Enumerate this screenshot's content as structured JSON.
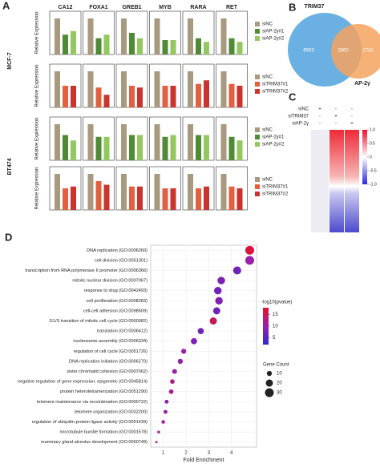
{
  "chart_data": [
    {
      "type": "bar",
      "panel": "A",
      "group_label": "MCF-7",
      "y_label": "Relative Expression",
      "categories": [
        "CA12",
        "FOXA1",
        "GREB1",
        "MYB",
        "RARA",
        "RET"
      ],
      "ylim": [
        0,
        1.2
      ],
      "series": [
        {
          "name": "siNC",
          "color": "#a89a7e",
          "values": [
            1,
            1,
            1,
            1,
            1,
            1
          ]
        },
        {
          "name": "siAP-2γ#1",
          "color": "#4f8a34",
          "values": [
            0.55,
            0.45,
            0.6,
            0.4,
            0.45,
            0.45
          ]
        },
        {
          "name": "siAP-2γ#2",
          "color": "#93c75f",
          "values": [
            0.65,
            0.55,
            0.45,
            0.4,
            0.35,
            0.35
          ]
        }
      ]
    },
    {
      "type": "bar",
      "y_label": "Relative Expression",
      "categories": [
        null,
        null,
        null,
        null,
        null,
        null
      ],
      "ylim": [
        0,
        1.2
      ],
      "series": [
        {
          "name": "siNC",
          "color": "#a89a7e",
          "values": [
            1,
            1,
            1,
            1,
            1,
            1
          ]
        },
        {
          "name": "siTRIM37#1",
          "color": "#e2603f",
          "values": [
            0.6,
            0.55,
            0.6,
            0.6,
            0.65,
            0.65
          ]
        },
        {
          "name": "siTRIM37#2",
          "color": "#c8352e",
          "values": [
            0.6,
            0.35,
            0.55,
            0.6,
            0.75,
            0.6
          ]
        }
      ]
    },
    {
      "type": "bar",
      "group_label": "BT474",
      "y_label": "Relative Expression",
      "categories": [
        null,
        null,
        null,
        null,
        null,
        null
      ],
      "ylim": [
        0,
        1.2
      ],
      "series": [
        {
          "name": "siNC",
          "color": "#a89a7e",
          "values": [
            1,
            1,
            1,
            1,
            1,
            1
          ]
        },
        {
          "name": "siAP-2γ#1",
          "color": "#4f8a34",
          "values": [
            0.7,
            0.65,
            0.7,
            0.65,
            0.7,
            0.65
          ]
        },
        {
          "name": "siAP-2γ#2",
          "color": "#93c75f",
          "values": [
            0.55,
            0.65,
            0.7,
            0.7,
            0.7,
            0.55
          ]
        }
      ]
    },
    {
      "type": "bar",
      "y_label": "Relative Expression",
      "categories": [
        null,
        null,
        null,
        null,
        null,
        null
      ],
      "ylim": [
        0,
        1.2
      ],
      "series": [
        {
          "name": "siNC",
          "color": "#a89a7e",
          "values": [
            1,
            1,
            1,
            1,
            1,
            1
          ]
        },
        {
          "name": "siTRIM37#1",
          "color": "#e2603f",
          "values": [
            0.6,
            0.8,
            0.65,
            0.6,
            0.6,
            0.65
          ]
        },
        {
          "name": "siTRIM37#2",
          "color": "#c8352e",
          "values": [
            0.65,
            0.7,
            0.65,
            0.6,
            0.65,
            0.6
          ]
        }
      ]
    },
    {
      "type": "venn",
      "panel": "B",
      "sets": [
        {
          "name": "TRIM37",
          "color": "#5aa7df"
        },
        {
          "name": "AP-2γ",
          "color": "#f4a35f"
        }
      ],
      "values": [
        6903,
        2860,
        1741
      ]
    },
    {
      "type": "heatmap",
      "panel": "C",
      "conditions": [
        {
          "name": "siNC",
          "signs": [
            "+",
            "-",
            "-"
          ]
        },
        {
          "name": "siTRIM37",
          "signs": [
            "-",
            "+",
            "-"
          ]
        },
        {
          "name": "siAP-2γ",
          "signs": [
            "-",
            "-",
            "+"
          ]
        }
      ],
      "zlim": [
        -1,
        1
      ],
      "colorbar_ticks": [
        {
          "value": 1,
          "label": "1.0"
        },
        0.5,
        0,
        -0.5,
        {
          "value": -1,
          "label": "-1.0"
        }
      ]
    },
    {
      "type": "dot",
      "panel": "D",
      "x_label": "Fold Enrichment",
      "categories": [
        "DNA replication (GO:0006260)",
        "cell division (GO:0051301)",
        "transcription from RNA polymerase II promoter (GO:0006366)",
        "mitotic nuclear division (GO:0007067)",
        "response to drug (GO:0042493)",
        "cell proliferation (GO:0008283)",
        "cell-cell adhesion (GO:0098609)",
        "G1/S transition of mitotic cell cycle (GO:0000082)",
        "translation (GO:0006412)",
        "nucleosome assembly (GO:0006334)",
        "regulation of cell cycle (GO:0051726)",
        "DNA replication initiation (GO:0006270)",
        "sister chromatid cohesion (GO:0007062)",
        "negative regulation of gene expression, epigenetic (GO:0045814)",
        "protein heterotetramerization (GO:0051290)",
        "telomere maintenance via recombination (GO:0000722)",
        "telomere organization (GO:0032200)",
        "regulation of ubiquitin-protein ligase activity (GO:0051439)",
        "microtubule bundle formation (GO:0001578)",
        "mammary gland alveolus development (GO:0060749)"
      ],
      "x": [
        4.8,
        4.8,
        4.25,
        3.55,
        3.4,
        3.45,
        3.35,
        3.2,
        2.65,
        2.35,
        1.9,
        1.75,
        1.5,
        1.4,
        1.35,
        1.15,
        1.1,
        1,
        0.8,
        0.7
      ],
      "color_title": "-log10(pvalue)",
      "values": [
        17,
        10,
        7,
        8,
        7,
        8,
        7,
        15,
        7,
        8,
        10,
        9,
        10,
        12,
        11,
        9,
        10,
        11,
        11,
        12
      ],
      "color_lim": [
        2,
        18
      ],
      "color_ticks": [
        5,
        10,
        15
      ],
      "size_title": "Gene Count",
      "sizes": [
        30,
        30,
        25,
        22,
        22,
        22,
        20,
        20,
        15,
        15,
        10,
        10,
        9,
        8,
        8,
        6,
        6,
        5,
        3,
        2
      ],
      "size_ticks": [
        10,
        20,
        30
      ],
      "xlim": [
        0.45,
        5.1
      ],
      "xticks": [
        1,
        2,
        3,
        4
      ],
      "grid": true
    }
  ]
}
